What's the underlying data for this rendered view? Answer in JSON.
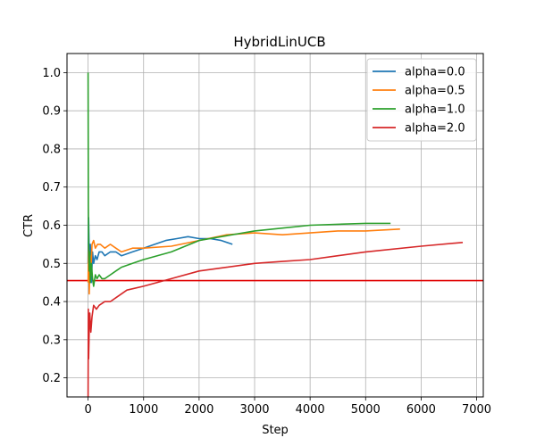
{
  "chart_data": {
    "type": "line",
    "title": "HybridLinUCB",
    "xlabel": "Step",
    "ylabel": "CTR",
    "xlim": [
      -380,
      7120
    ],
    "ylim": [
      0.15,
      1.05
    ],
    "xticks": [
      0,
      1000,
      2000,
      3000,
      4000,
      5000,
      6000,
      7000
    ],
    "xtick_labels": [
      "0",
      "1000",
      "2000",
      "3000",
      "4000",
      "5000",
      "6000",
      "7000"
    ],
    "yticks": [
      0.2,
      0.3,
      0.4,
      0.5,
      0.6,
      0.7,
      0.8,
      0.9,
      1.0
    ],
    "ytick_labels": [
      "0.2",
      "0.3",
      "0.4",
      "0.5",
      "0.6",
      "0.7",
      "0.8",
      "0.9",
      "1.0"
    ],
    "grid": true,
    "legend_position": "top-right",
    "hline": {
      "y": 0.455,
      "color": "#e00000"
    },
    "series": [
      {
        "name": "alpha=0.0",
        "color": "#1f77b4",
        "x": [
          0,
          10,
          25,
          40,
          60,
          80,
          100,
          130,
          160,
          200,
          250,
          300,
          400,
          500,
          600,
          800,
          1000,
          1200,
          1400,
          1600,
          1800,
          2000,
          2200,
          2400,
          2600
        ],
        "y": [
          0.5,
          0.62,
          0.48,
          0.55,
          0.45,
          0.53,
          0.5,
          0.52,
          0.51,
          0.53,
          0.53,
          0.52,
          0.53,
          0.53,
          0.52,
          0.53,
          0.54,
          0.55,
          0.56,
          0.565,
          0.57,
          0.565,
          0.565,
          0.56,
          0.55
        ]
      },
      {
        "name": "alpha=0.5",
        "color": "#ff7f0e",
        "x": [
          0,
          10,
          20,
          35,
          50,
          70,
          100,
          130,
          170,
          220,
          300,
          400,
          500,
          600,
          800,
          1000,
          1500,
          2000,
          2500,
          3000,
          3500,
          4000,
          4500,
          5000,
          5620
        ],
        "y": [
          0.45,
          0.55,
          0.42,
          0.52,
          0.47,
          0.55,
          0.56,
          0.54,
          0.55,
          0.55,
          0.54,
          0.55,
          0.54,
          0.53,
          0.54,
          0.54,
          0.545,
          0.56,
          0.575,
          0.58,
          0.575,
          0.58,
          0.585,
          0.585,
          0.59
        ]
      },
      {
        "name": "alpha=1.0",
        "color": "#2ca02c",
        "x": [
          0,
          5,
          10,
          20,
          30,
          40,
          60,
          80,
          100,
          130,
          160,
          200,
          250,
          300,
          400,
          500,
          600,
          800,
          1000,
          1500,
          2000,
          3000,
          4000,
          5000,
          5450
        ],
        "y": [
          1.0,
          0.65,
          0.55,
          0.48,
          0.53,
          0.45,
          0.5,
          0.46,
          0.44,
          0.47,
          0.46,
          0.47,
          0.46,
          0.46,
          0.47,
          0.48,
          0.49,
          0.5,
          0.51,
          0.53,
          0.56,
          0.585,
          0.6,
          0.605,
          0.605
        ]
      },
      {
        "name": "alpha=2.0",
        "color": "#d62728",
        "x": [
          0,
          5,
          10,
          20,
          30,
          50,
          70,
          100,
          150,
          200,
          300,
          400,
          500,
          700,
          1000,
          1500,
          2000,
          2500,
          3000,
          3500,
          4000,
          4500,
          5000,
          6000,
          6750
        ],
        "y": [
          0.15,
          0.38,
          0.25,
          0.33,
          0.37,
          0.32,
          0.36,
          0.39,
          0.38,
          0.39,
          0.4,
          0.4,
          0.41,
          0.43,
          0.44,
          0.46,
          0.48,
          0.49,
          0.5,
          0.505,
          0.51,
          0.52,
          0.53,
          0.545,
          0.555
        ]
      }
    ]
  }
}
